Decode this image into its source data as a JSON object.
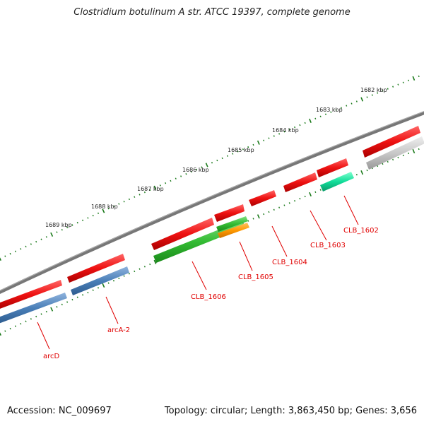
{
  "header": {
    "title": "Clostridium botulinum A str. ATCC 19397, complete genome"
  },
  "footer": {
    "accession": "Accession: NC_009697",
    "topology": "Topology: circular; Length: 3,863,450 bp; Genes: 3,656"
  },
  "colors": {
    "background": "#ffffff",
    "backbone": "#777777",
    "tick": "#1a7a1a",
    "forward_gene": "#ee1111",
    "label_red": "#e00000"
  },
  "scale_labels": [
    "1682 kbp",
    "1683 kbp",
    "1684 kbp",
    "1685 kbp",
    "1686 kbp",
    "1687 kbp",
    "1688 kbp",
    "1689 kbp"
  ],
  "gene_labels": [
    "CLB_1602",
    "CLB_1603",
    "CLB_1604",
    "CLB_1605",
    "CLB_1606",
    "arcA-2",
    "arcD"
  ]
}
